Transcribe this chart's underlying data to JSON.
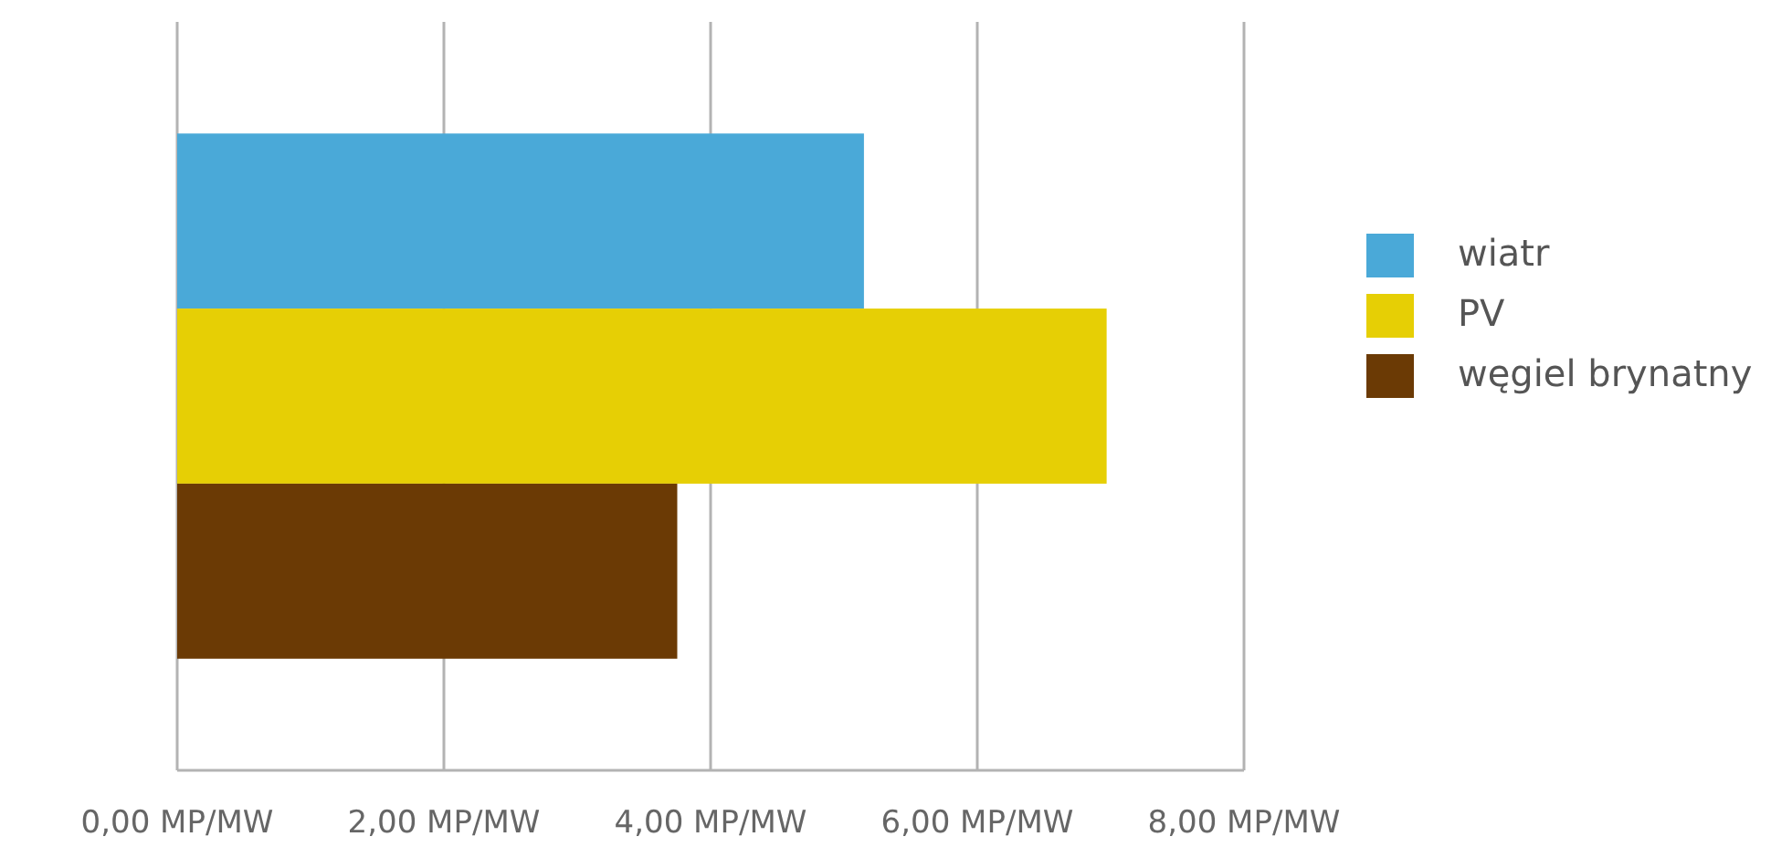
{
  "chart_data": {
    "type": "bar",
    "orientation": "horizontal",
    "categories": [
      null
    ],
    "series": [
      {
        "name": "wiatr",
        "color": "#4aa9d8",
        "values": [
          5.15
        ]
      },
      {
        "name": "PV",
        "color": "#e6cf05",
        "values": [
          6.97
        ]
      },
      {
        "name": "węgiel brynatny",
        "color": "#6b3a05",
        "values": [
          3.75
        ]
      }
    ],
    "xlim": [
      0,
      8
    ],
    "xticks": [
      {
        "value": 0,
        "label": "0,00 MP/MW"
      },
      {
        "value": 2,
        "label": "2,00 MP/MW"
      },
      {
        "value": 4,
        "label": "4,00 MP/MW"
      },
      {
        "value": 6,
        "label": "6,00 MP/MW"
      },
      {
        "value": 8,
        "label": "8,00 MP/MW"
      }
    ],
    "grid": "x",
    "legend": "right"
  }
}
